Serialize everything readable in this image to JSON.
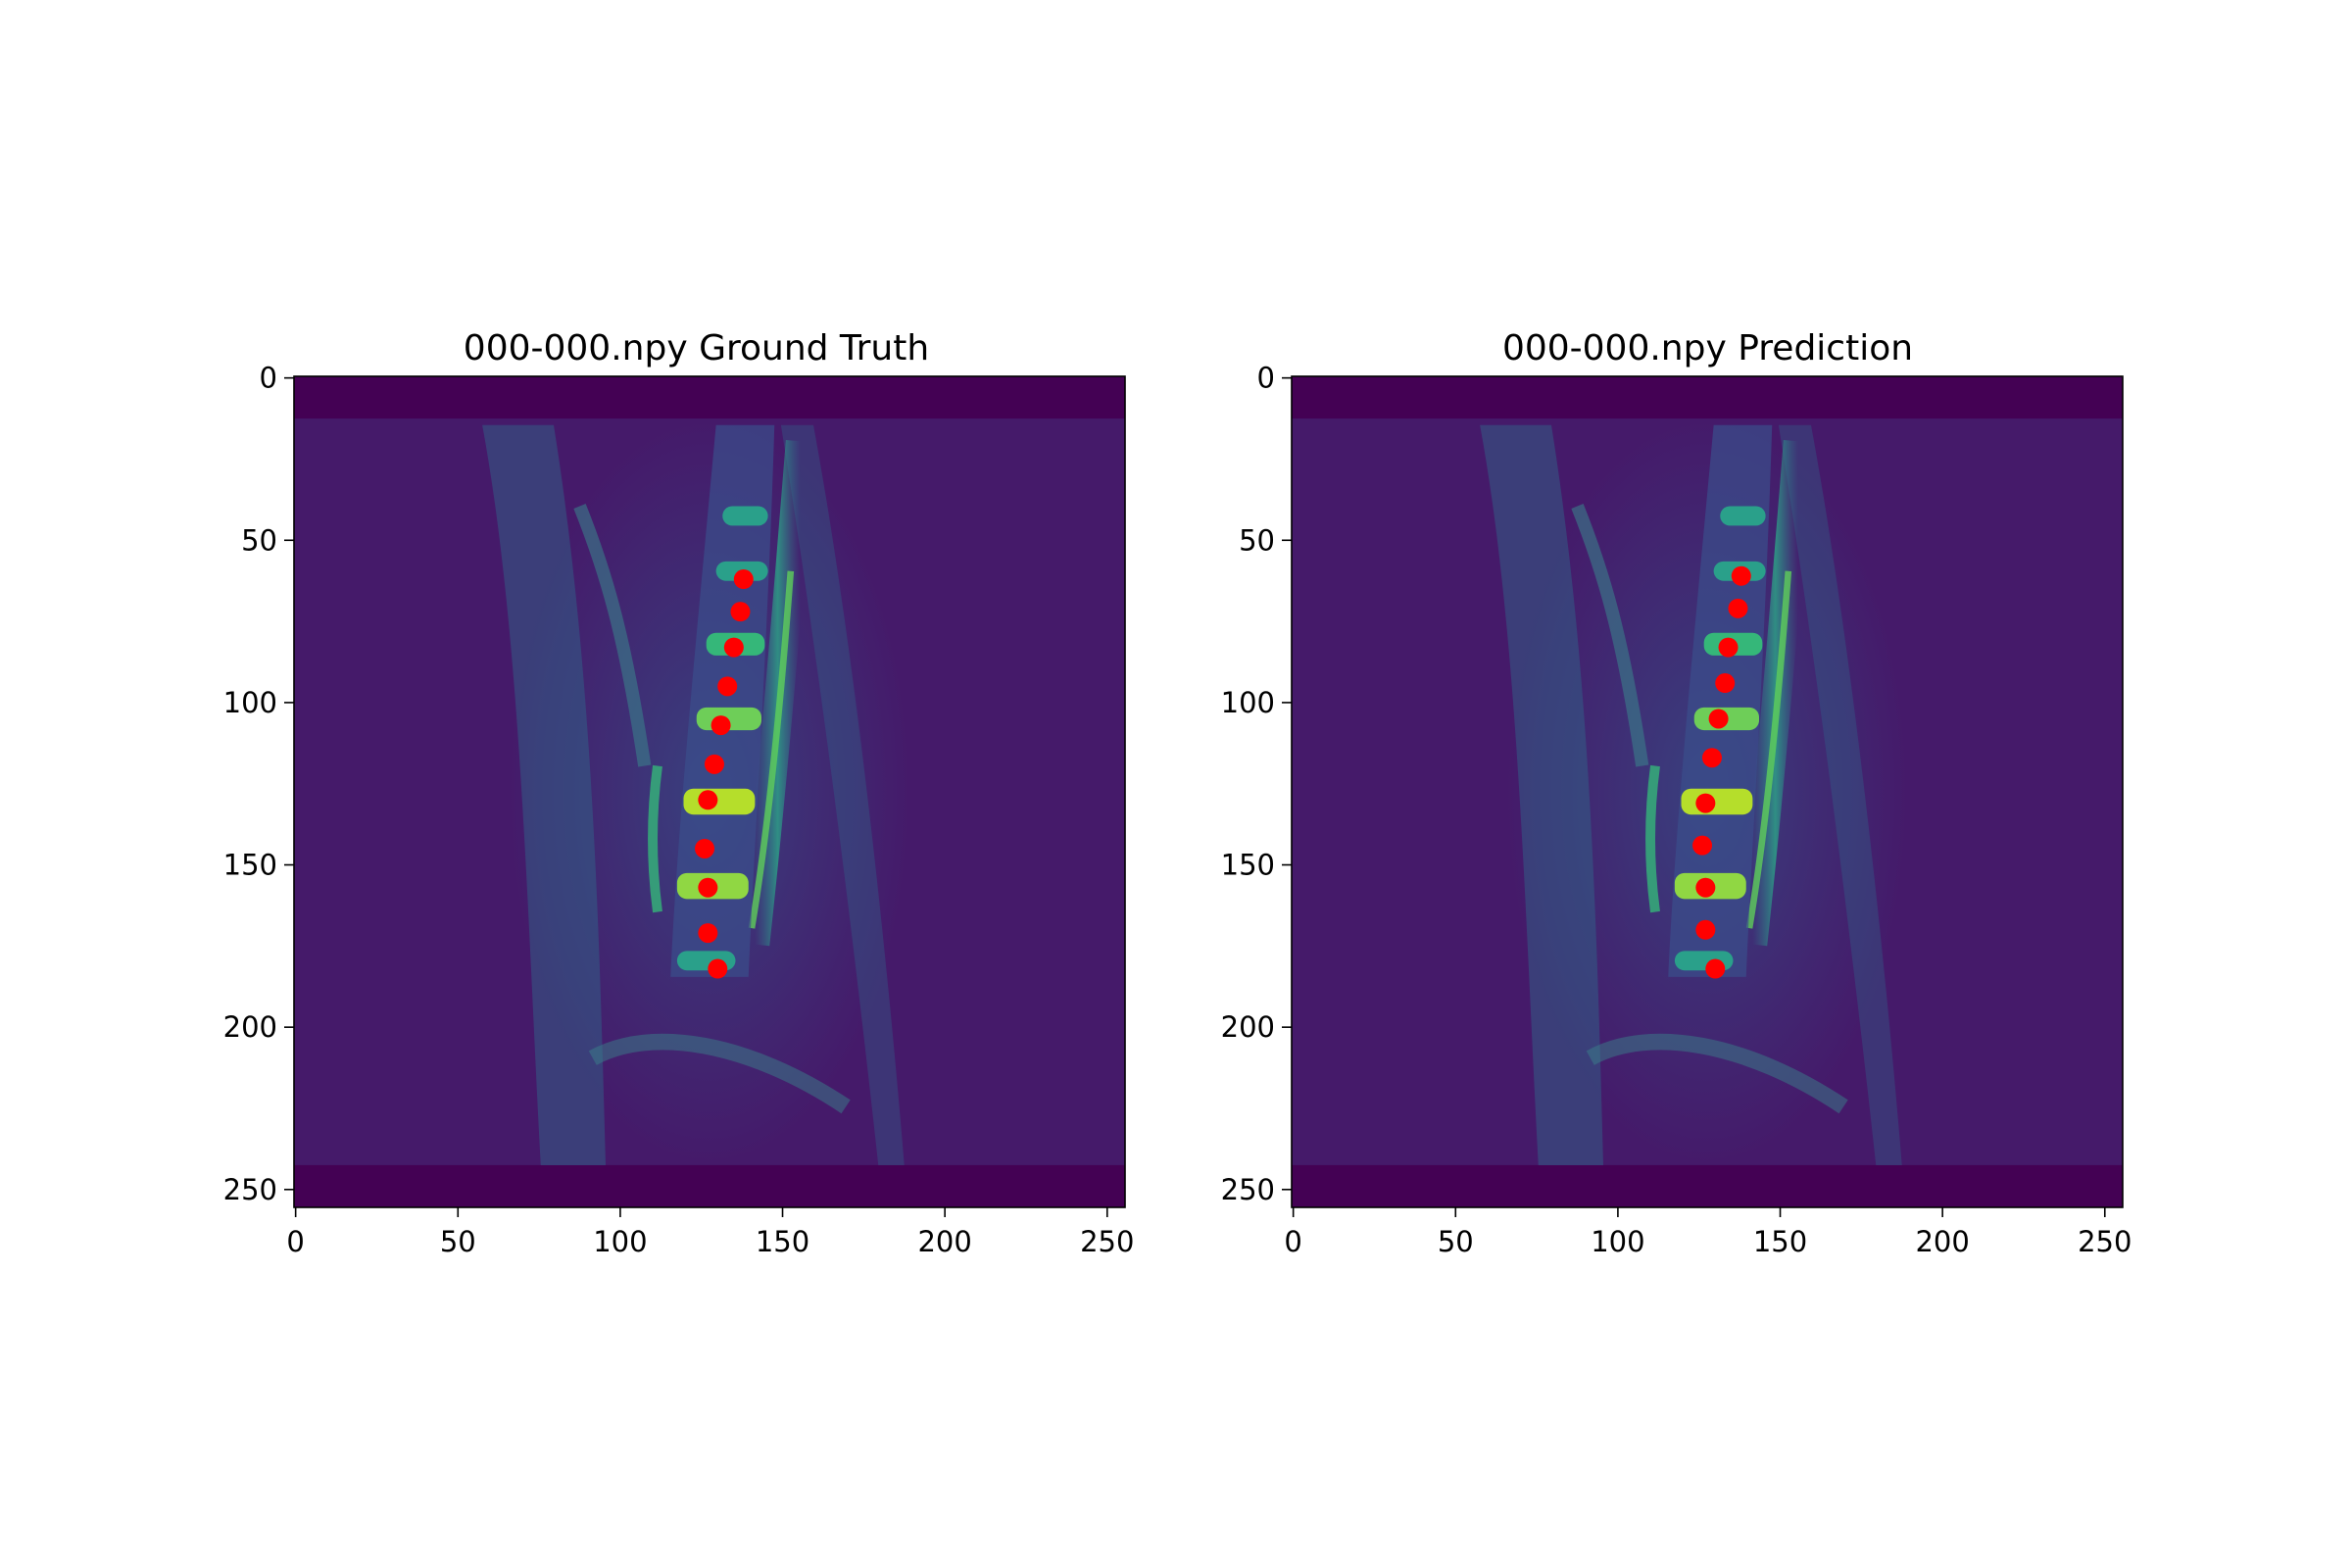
{
  "chart_data": [
    {
      "type": "scatter",
      "title": "000-000.npy Ground Truth",
      "xlabel": "",
      "ylabel": "",
      "xlim": [
        -0.5,
        255.5
      ],
      "ylim": [
        255.5,
        -0.5
      ],
      "y_inverted": true,
      "xticks": [
        0,
        50,
        100,
        150,
        200,
        250
      ],
      "yticks": [
        0,
        50,
        100,
        150,
        200,
        250
      ],
      "grid": false,
      "background": "sagittal-mri-slice-viridis",
      "marker_color": "#ff0000",
      "points": [
        {
          "x": 138,
          "y": 62
        },
        {
          "x": 137,
          "y": 72
        },
        {
          "x": 135,
          "y": 83
        },
        {
          "x": 133,
          "y": 95
        },
        {
          "x": 131,
          "y": 107
        },
        {
          "x": 129,
          "y": 119
        },
        {
          "x": 127,
          "y": 130
        },
        {
          "x": 126,
          "y": 145
        },
        {
          "x": 127,
          "y": 157
        },
        {
          "x": 127,
          "y": 171
        },
        {
          "x": 130,
          "y": 182
        }
      ]
    },
    {
      "type": "scatter",
      "title": "000-000.npy Prediction",
      "xlabel": "",
      "ylabel": "",
      "xlim": [
        -0.5,
        255.5
      ],
      "ylim": [
        255.5,
        -0.5
      ],
      "y_inverted": true,
      "xticks": [
        0,
        50,
        100,
        150,
        200,
        250
      ],
      "yticks": [
        0,
        50,
        100,
        150,
        200,
        250
      ],
      "grid": false,
      "background": "sagittal-mri-slice-viridis",
      "marker_color": "#ff0000",
      "points": [
        {
          "x": 138,
          "y": 61
        },
        {
          "x": 137,
          "y": 71
        },
        {
          "x": 134,
          "y": 83
        },
        {
          "x": 133,
          "y": 94
        },
        {
          "x": 131,
          "y": 105
        },
        {
          "x": 129,
          "y": 117
        },
        {
          "x": 127,
          "y": 131
        },
        {
          "x": 126,
          "y": 144
        },
        {
          "x": 127,
          "y": 157
        },
        {
          "x": 127,
          "y": 170
        },
        {
          "x": 130,
          "y": 182
        }
      ]
    }
  ]
}
